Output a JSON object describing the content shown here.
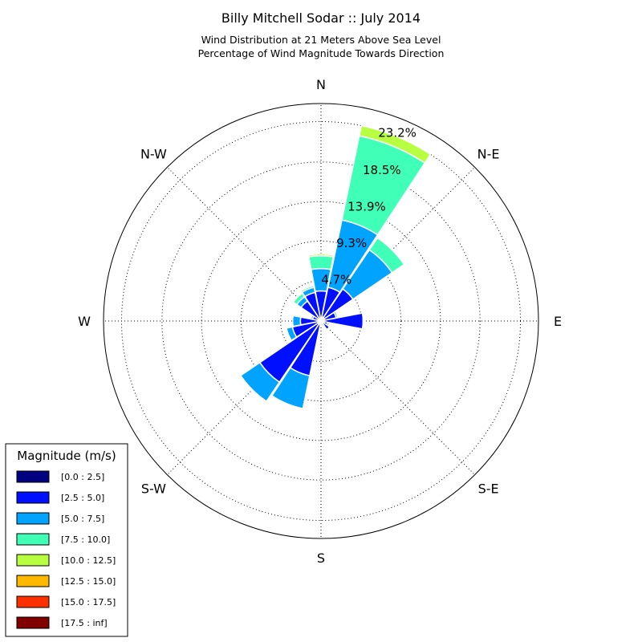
{
  "chart_data": {
    "type": "windrose",
    "title": "Billy Mitchell Sodar :: July 2014",
    "subtitle_lines": [
      "Wind Distribution at 21 Meters Above Sea Level",
      "Percentage of Wind Magnitude Towards Direction"
    ],
    "directions": [
      "N",
      "N-E",
      "E",
      "S-E",
      "S",
      "S-W",
      "W",
      "N-W"
    ],
    "ring_labels": [
      "4.7%",
      "9.3%",
      "13.9%",
      "18.5%",
      "23.2%"
    ],
    "ring_values": [
      4.7,
      9.3,
      13.9,
      18.5,
      23.2
    ],
    "rmax": 25.3,
    "legend": {
      "title": "Magnitude (m/s)",
      "bins": [
        {
          "label": "[0.0 : 2.5]",
          "color": "#000080"
        },
        {
          "label": "[2.5 : 5.0]",
          "color": "#0010ff"
        },
        {
          "label": "[5.0 : 7.5]",
          "color": "#00a4ff"
        },
        {
          "label": "[7.5 : 10.0]",
          "color": "#40ffb7"
        },
        {
          "label": "[10.0 : 12.5]",
          "color": "#b7ff40"
        },
        {
          "label": "[12.5 : 15.0]",
          "color": "#ffb900"
        },
        {
          "label": "[15.0 : 17.5]",
          "color": "#ff3000"
        },
        {
          "label": "[17.5 : inf]",
          "color": "#800000"
        }
      ]
    },
    "sectors": [
      {
        "direction_deg": 0,
        "cumulative": [
          0.4,
          3.5,
          6.1,
          7.6,
          7.8
        ]
      },
      {
        "direction_deg": 22.5,
        "cumulative": [
          0.5,
          4.0,
          12.0,
          22.0,
          23.2
        ]
      },
      {
        "direction_deg": 45,
        "cumulative": [
          0.5,
          4.5,
          10.0,
          11.7,
          11.8
        ]
      },
      {
        "direction_deg": 67.5,
        "cumulative": [
          0.4,
          1.8,
          2.0,
          2.1,
          2.1
        ]
      },
      {
        "direction_deg": 90,
        "cumulative": [
          0.4,
          4.9,
          5.0,
          5.0,
          5.0
        ]
      },
      {
        "direction_deg": 112.5,
        "cumulative": [
          0.3,
          0.8,
          1.0,
          1.0,
          1.0
        ]
      },
      {
        "direction_deg": 135,
        "cumulative": [
          0.3,
          1.2,
          1.3,
          1.3,
          1.3
        ]
      },
      {
        "direction_deg": 157.5,
        "cumulative": [
          0.3,
          0.6,
          0.7,
          0.7,
          0.7
        ]
      },
      {
        "direction_deg": 180,
        "cumulative": [
          0.3,
          0.5,
          0.5,
          0.5,
          0.5
        ]
      },
      {
        "direction_deg": 202.5,
        "cumulative": [
          0.4,
          6.5,
          10.4,
          10.4,
          10.4
        ]
      },
      {
        "direction_deg": 225,
        "cumulative": [
          0.4,
          8.6,
          11.3,
          11.4,
          11.4
        ]
      },
      {
        "direction_deg": 247.5,
        "cumulative": [
          0.4,
          3.4,
          4.1,
          4.1,
          4.1
        ]
      },
      {
        "direction_deg": 270,
        "cumulative": [
          0.3,
          2.4,
          3.3,
          3.3,
          3.3
        ]
      },
      {
        "direction_deg": 292.5,
        "cumulative": [
          0.3,
          1.0,
          1.2,
          1.2,
          1.2
        ]
      },
      {
        "direction_deg": 315,
        "cumulative": [
          0.3,
          2.8,
          3.4,
          3.9,
          3.9
        ]
      },
      {
        "direction_deg": 337.5,
        "cumulative": [
          0.3,
          3.4,
          4.0,
          4.2,
          4.2
        ]
      }
    ]
  }
}
